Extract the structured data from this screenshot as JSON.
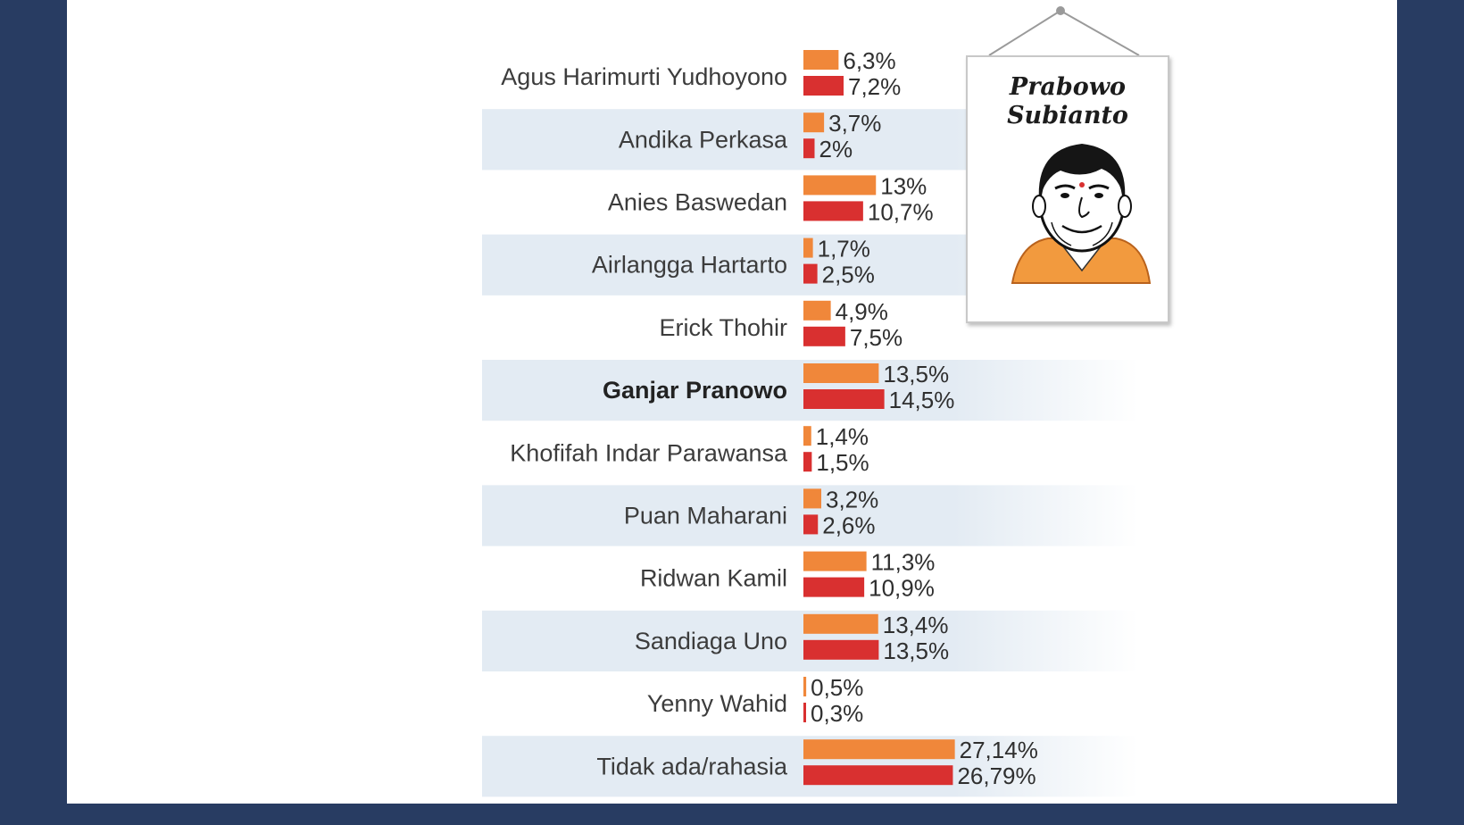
{
  "chart_data": {
    "type": "bar",
    "orientation": "horizontal",
    "categories": [
      "Agus Harimurti Yudhoyono",
      "Andika Perkasa",
      "Anies Baswedan",
      "Airlangga Hartarto",
      "Erick Thohir",
      "Ganjar Pranowo",
      "Khofifah Indar Parawansa",
      "Puan Maharani",
      "Ridwan Kamil",
      "Sandiaga Uno",
      "Yenny Wahid",
      "Tidak ada/rahasia"
    ],
    "bold_category": "Ganjar Pranowo",
    "series": [
      {
        "color": "#f0873a",
        "values": [
          6.3,
          3.7,
          13,
          1.7,
          4.9,
          13.5,
          1.4,
          3.2,
          11.3,
          13.4,
          0.5,
          27.14
        ],
        "labels": [
          "6,3%",
          "3,7%",
          "13%",
          "1,7%",
          "4,9%",
          "13,5%",
          "1,4%",
          "3,2%",
          "11,3%",
          "13,4%",
          "0,5%",
          "27,14%"
        ]
      },
      {
        "color": "#d93030",
        "values": [
          7.2,
          2,
          10.7,
          2.5,
          7.5,
          14.5,
          1.5,
          2.6,
          10.9,
          13.5,
          0.3,
          26.79
        ],
        "labels": [
          "7,2%",
          "2%",
          "10,7%",
          "2,5%",
          "7,5%",
          "14,5%",
          "1,5%",
          "2,6%",
          "10,9%",
          "13,5%",
          "0,3%",
          "26,79%"
        ]
      }
    ],
    "legend": "none",
    "grid": false,
    "row_striping": true
  },
  "poster": {
    "title": "Prabowo\nSubianto",
    "image": "caricature-portrait"
  },
  "colors": {
    "background": "#283c62",
    "panel": "#ffffff",
    "stripe": "#e3ebf3"
  }
}
